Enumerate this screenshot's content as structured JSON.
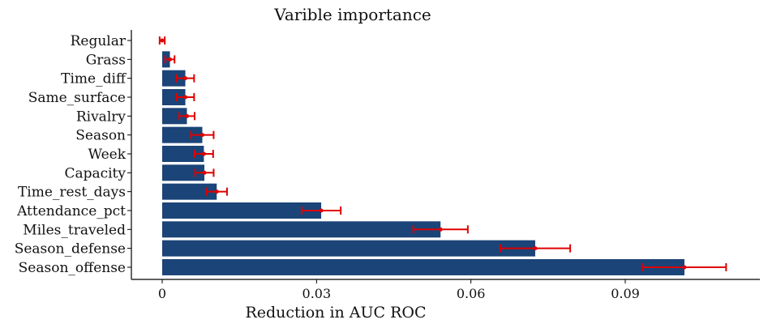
{
  "chart_data": {
    "type": "bar",
    "orientation": "horizontal",
    "title": "Varible importance",
    "xlabel": "Reduction in AUC ROC",
    "ylabel": "",
    "xlim": [
      -0.006,
      0.115
    ],
    "xticks": [
      0,
      0.03,
      0.06,
      0.09
    ],
    "xtick_labels": [
      "0",
      "0.03",
      "0.06",
      "0.09"
    ],
    "grid": false,
    "legend": "none",
    "bar_color": "#1b4478",
    "error_color": "#e00000",
    "categories": [
      "Regular",
      "Grass",
      "Time_diff",
      "Same_surface",
      "Rivalry",
      "Season",
      "Week",
      "Capacity",
      "Time_rest_days",
      "Attendance_pct",
      "Miles_traveled",
      "Season_defense",
      "Season_offense"
    ],
    "values": [
      0.0,
      0.0015,
      0.0045,
      0.0045,
      0.0048,
      0.0078,
      0.0081,
      0.0082,
      0.0106,
      0.0309,
      0.0541,
      0.0725,
      0.1015
    ],
    "errors": [
      0.0005,
      0.0009,
      0.0017,
      0.0017,
      0.0015,
      0.0022,
      0.0018,
      0.0018,
      0.002,
      0.0038,
      0.0053,
      0.0068,
      0.0081
    ]
  }
}
